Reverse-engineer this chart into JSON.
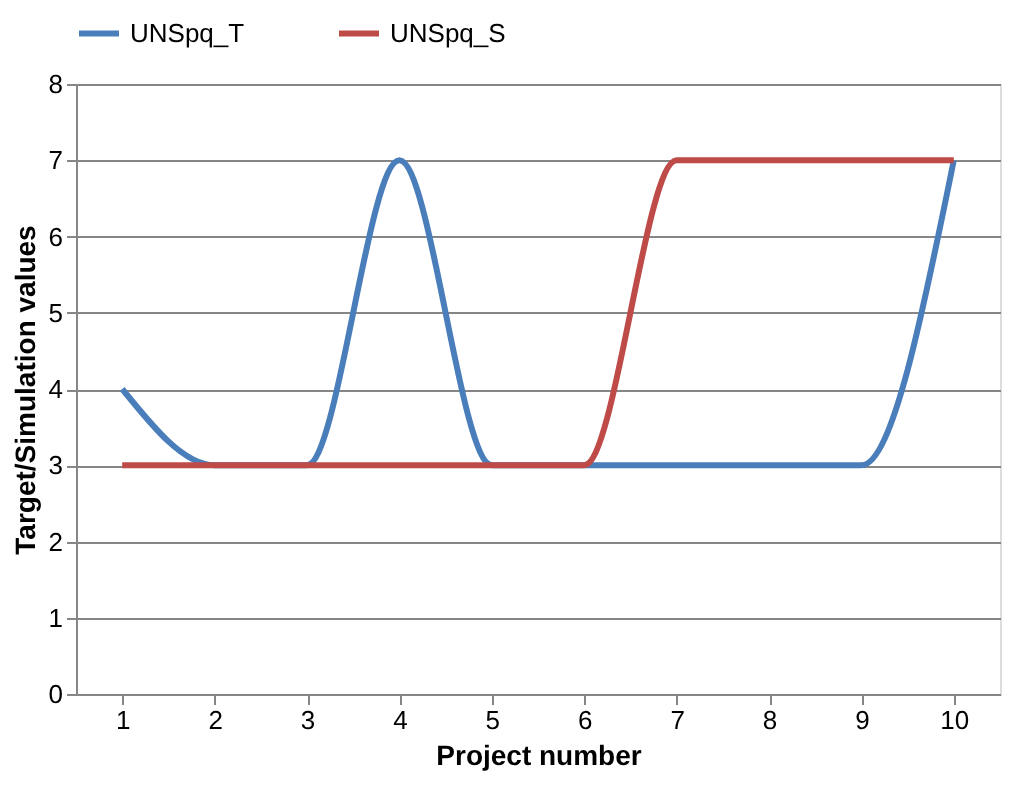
{
  "chart_data": {
    "type": "line",
    "xlabel": "Project number",
    "ylabel": "Target/Simulation values",
    "categories": [
      "1",
      "2",
      "3",
      "4",
      "5",
      "6",
      "7",
      "8",
      "9",
      "10"
    ],
    "series": [
      {
        "name": "UNSpq_T",
        "color": "#4a7ebb",
        "values": [
          4,
          3,
          3,
          7,
          3,
          3,
          3,
          3,
          3,
          7
        ]
      },
      {
        "name": "UNSpq_S",
        "color": "#be4b48",
        "values": [
          3,
          3,
          3,
          3,
          3,
          3,
          7,
          7,
          7,
          7
        ]
      }
    ],
    "ylim": [
      0,
      8
    ],
    "yticks": [
      0,
      1,
      2,
      3,
      4,
      5,
      6,
      7,
      8
    ],
    "grid": "y",
    "legend": "top",
    "marker": "none",
    "line_style": "solid"
  }
}
